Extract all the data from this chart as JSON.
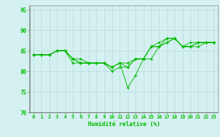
{
  "title": "",
  "xlabel": "Humidité relative (%)",
  "ylabel": "",
  "background_color": "#d4f0f0",
  "grid_color": "#b8d8d8",
  "line_color": "#00bb00",
  "marker_color": "#00bb00",
  "xlim": [
    -0.5,
    23.5
  ],
  "ylim": [
    70,
    96
  ],
  "yticks": [
    70,
    75,
    80,
    85,
    90,
    95
  ],
  "xtick_labels": [
    "0",
    "1",
    "2",
    "3",
    "4",
    "5",
    "6",
    "7",
    "8",
    "9",
    "10",
    "11",
    "12",
    "13",
    "14",
    "15",
    "16",
    "17",
    "18",
    "19",
    "20",
    "21",
    "22",
    "23"
  ],
  "series": [
    [
      84,
      84,
      84,
      85,
      85,
      82,
      82,
      82,
      82,
      82,
      80,
      81,
      81,
      83,
      83,
      86,
      87,
      88,
      88,
      86,
      86,
      87,
      87,
      87
    ],
    [
      84,
      84,
      84,
      85,
      85,
      83,
      82,
      82,
      82,
      82,
      81,
      82,
      76,
      79,
      83,
      83,
      86,
      88,
      88,
      86,
      86,
      86,
      87,
      87
    ],
    [
      84,
      84,
      84,
      85,
      85,
      83,
      82,
      82,
      82,
      82,
      81,
      82,
      81,
      83,
      83,
      86,
      86,
      87,
      88,
      86,
      87,
      87,
      87,
      87
    ],
    [
      84,
      84,
      84,
      85,
      85,
      83,
      83,
      82,
      82,
      82,
      81,
      82,
      82,
      83,
      83,
      86,
      86,
      87,
      88,
      86,
      86,
      87,
      87,
      87
    ]
  ]
}
